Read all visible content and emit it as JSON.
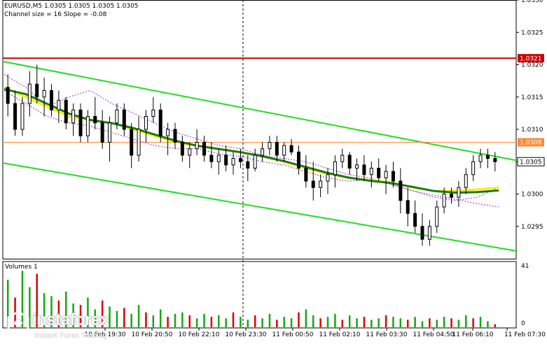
{
  "header": {
    "symbol_line": "EURUSD,M5  1.0305 1.0305 1.0305 1.0305",
    "channel_line": "Channel size = 16 Slope = -0.08"
  },
  "volume_pane": {
    "label": "Volumes 1",
    "axis_max_label": "41",
    "axis_min_label": "0"
  },
  "watermark": {
    "brand": "instaforex",
    "tagline": "Instant Forex Trading"
  },
  "colors": {
    "channel": "#22dd22",
    "ma_fast": "#ffee00",
    "ma_slow": "#1a7a1a",
    "bollinger": "#9933cc",
    "resistance": "#cc0000",
    "level_orange": "#ff8833",
    "candle": "#000000",
    "volume_up": "#11aa11",
    "volume_down": "#dd0000"
  },
  "chart_data": {
    "type": "candlestick",
    "y_axis": {
      "min": 1.029,
      "max": 1.033,
      "ticks": [
        "1.0330",
        "1.0325",
        "1.0320",
        "1.0315",
        "1.0310",
        "1.0305",
        "1.0300",
        "1.0295"
      ]
    },
    "x_axis": {
      "ticks": [
        "10 Feb 19:30",
        "10 Feb 20:50",
        "10 Feb 22:10",
        "10 Feb 23:30",
        "11 Feb 00:50",
        "11 Feb 02:10",
        "11 Feb 03:30",
        "11 Feb 04:50",
        "11 Feb 06:10",
        "11 Feb 07:30"
      ]
    },
    "levels": [
      {
        "name": "resistance",
        "value": 1.0321,
        "label": "1.0321",
        "color": "#cc0000"
      },
      {
        "name": "intraday-level",
        "value": 1.0308,
        "label": "1.0308",
        "color": "#ff8833"
      },
      {
        "name": "current-price",
        "value": 1.0305,
        "label": "1.0305",
        "color": "#000000"
      }
    ],
    "series": [
      {
        "values": [
          1.03185,
          1.03165,
          1.03135,
          1.0315,
          1.0316,
          1.0314,
          1.03125,
          1.0311,
          1.03095,
          1.03085,
          1.03075,
          1.0307,
          1.0306,
          1.03055,
          1.0305,
          1.0304,
          1.0303,
          1.03025,
          1.03015,
          1.03005,
          1.02998,
          1.02992,
          1.02985,
          1.0298
        ]
      },
      {
        "values": [
          1.0316,
          1.0314,
          1.0312,
          1.0311,
          1.03105,
          1.03095,
          1.03085,
          1.03075,
          1.0307,
          1.0307,
          1.03062,
          1.03058,
          1.0305,
          1.03045,
          1.03035,
          1.03025,
          1.0302,
          1.03022,
          1.03015,
          1.03005,
          1.02995,
          1.0299,
          1.02995,
          1.0301
        ]
      },
      {
        "values": [
          1.03165,
          1.0315,
          1.03135,
          1.0312,
          1.03115,
          1.0311,
          1.031,
          1.0309,
          1.0308,
          1.03075,
          1.0307,
          1.03065,
          1.03058,
          1.0305,
          1.0304,
          1.03032,
          1.03025,
          1.03022,
          1.03018,
          1.0301,
          1.03005,
          1.03005,
          1.03007,
          1.0301
        ]
      }
    ],
    "channel": [
      {
        "name": "upper",
        "from": 1.03205,
        "to": 1.03052
      },
      {
        "name": "lower",
        "from": 1.03048,
        "to": 1.02912
      }
    ],
    "ohlc": [
      [
        1.03165,
        1.03185,
        1.0312,
        1.0314
      ],
      [
        1.0314,
        1.0316,
        1.0309,
        1.031
      ],
      [
        1.031,
        1.0315,
        1.0309,
        1.0314
      ],
      [
        1.0314,
        1.0319,
        1.0312,
        1.0317
      ],
      [
        1.0317,
        1.032,
        1.0314,
        1.0315
      ],
      [
        1.0315,
        1.0318,
        1.0312,
        1.0316
      ],
      [
        1.0316,
        1.0317,
        1.0312,
        1.0313
      ],
      [
        1.0313,
        1.0316,
        1.0311,
        1.03145
      ],
      [
        1.03145,
        1.0315,
        1.031,
        1.0311
      ],
      [
        1.0311,
        1.0314,
        1.0309,
        1.0313
      ],
      [
        1.0313,
        1.0314,
        1.0308,
        1.0309
      ],
      [
        1.0309,
        1.0313,
        1.0308,
        1.0312
      ],
      [
        1.0312,
        1.0315,
        1.031,
        1.0311
      ],
      [
        1.0311,
        1.0313,
        1.0307,
        1.0308
      ],
      [
        1.0308,
        1.0312,
        1.0305,
        1.0311
      ],
      [
        1.0311,
        1.0314,
        1.031,
        1.0313
      ],
      [
        1.0313,
        1.0314,
        1.0309,
        1.031
      ],
      [
        1.031,
        1.0311,
        1.0304,
        1.0306
      ],
      [
        1.0306,
        1.0312,
        1.0305,
        1.031
      ],
      [
        1.031,
        1.0313,
        1.0308,
        1.0312
      ],
      [
        1.0312,
        1.0315,
        1.0311,
        1.0313
      ],
      [
        1.0313,
        1.0314,
        1.0308,
        1.0309
      ],
      [
        1.0309,
        1.0311,
        1.0306,
        1.031
      ],
      [
        1.031,
        1.0311,
        1.0307,
        1.0308
      ],
      [
        1.0308,
        1.0309,
        1.0305,
        1.0306
      ],
      [
        1.0306,
        1.0308,
        1.0304,
        1.0307
      ],
      [
        1.0307,
        1.031,
        1.0306,
        1.0308
      ],
      [
        1.0308,
        1.0309,
        1.0305,
        1.0306
      ],
      [
        1.0306,
        1.0308,
        1.0304,
        1.0305
      ],
      [
        1.0305,
        1.0307,
        1.0303,
        1.0306
      ],
      [
        1.0306,
        1.03075,
        1.03035,
        1.03045
      ],
      [
        1.03045,
        1.03065,
        1.0303,
        1.03055
      ],
      [
        1.03055,
        1.0307,
        1.0304,
        1.0305
      ],
      [
        1.0305,
        1.0306,
        1.0302,
        1.0304
      ],
      [
        1.0304,
        1.0307,
        1.03035,
        1.0306
      ],
      [
        1.0306,
        1.0308,
        1.0305,
        1.0307
      ],
      [
        1.0307,
        1.0309,
        1.0306,
        1.0308
      ],
      [
        1.0308,
        1.0309,
        1.0305,
        1.0306
      ],
      [
        1.0306,
        1.0308,
        1.0305,
        1.03075
      ],
      [
        1.03075,
        1.03085,
        1.0306,
        1.03065
      ],
      [
        1.03065,
        1.03075,
        1.0303,
        1.0304
      ],
      [
        1.0304,
        1.0306,
        1.0301,
        1.0302
      ],
      [
        1.0302,
        1.0305,
        1.0299,
        1.0301
      ],
      [
        1.0301,
        1.0303,
        1.02995,
        1.0302
      ],
      [
        1.0302,
        1.0304,
        1.03,
        1.0303
      ],
      [
        1.0303,
        1.0306,
        1.0301,
        1.0305
      ],
      [
        1.0305,
        1.0307,
        1.0304,
        1.0306
      ],
      [
        1.0306,
        1.03065,
        1.0303,
        1.0304
      ],
      [
        1.0304,
        1.03055,
        1.0302,
        1.03045
      ],
      [
        1.03045,
        1.0306,
        1.0302,
        1.0303
      ],
      [
        1.0303,
        1.0305,
        1.0301,
        1.0304
      ],
      [
        1.0304,
        1.03055,
        1.0302,
        1.03025
      ],
      [
        1.03025,
        1.03045,
        1.03,
        1.03035
      ],
      [
        1.03035,
        1.0305,
        1.0301,
        1.0302
      ],
      [
        1.0302,
        1.0304,
        1.0297,
        1.0299
      ],
      [
        1.0299,
        1.0301,
        1.0295,
        1.0297
      ],
      [
        1.0297,
        1.0299,
        1.0294,
        1.0295
      ],
      [
        1.0295,
        1.0297,
        1.0292,
        1.0293
      ],
      [
        1.0293,
        1.0296,
        1.0292,
        1.0295
      ],
      [
        1.0295,
        1.0299,
        1.0294,
        1.0298
      ],
      [
        1.0298,
        1.0301,
        1.0297,
        1.03
      ],
      [
        1.03,
        1.0301,
        1.02985,
        1.02995
      ],
      [
        1.02995,
        1.0302,
        1.0298,
        1.0301
      ],
      [
        1.0301,
        1.0304,
        1.03,
        1.0303
      ],
      [
        1.0303,
        1.0306,
        1.0302,
        1.0305
      ],
      [
        1.0305,
        1.0307,
        1.0304,
        1.0306
      ],
      [
        1.0306,
        1.0307,
        1.0304,
        1.03055
      ],
      [
        1.03055,
        1.03065,
        1.03035,
        1.0305
      ]
    ],
    "volumes": [
      32,
      20,
      38,
      27,
      36,
      23,
      21,
      18,
      24,
      16,
      15,
      20,
      12,
      18,
      14,
      11,
      13,
      9,
      15,
      10,
      8,
      12,
      7,
      9,
      10,
      8,
      6,
      9,
      7,
      8,
      6,
      10,
      7,
      5,
      8,
      6,
      9,
      5,
      7,
      6,
      10,
      12,
      8,
      6,
      7,
      9,
      5,
      8,
      6,
      7,
      5,
      6,
      8,
      7,
      6,
      5,
      7,
      4,
      6,
      5,
      7,
      6,
      5,
      8,
      6,
      7,
      4,
      2
    ]
  }
}
